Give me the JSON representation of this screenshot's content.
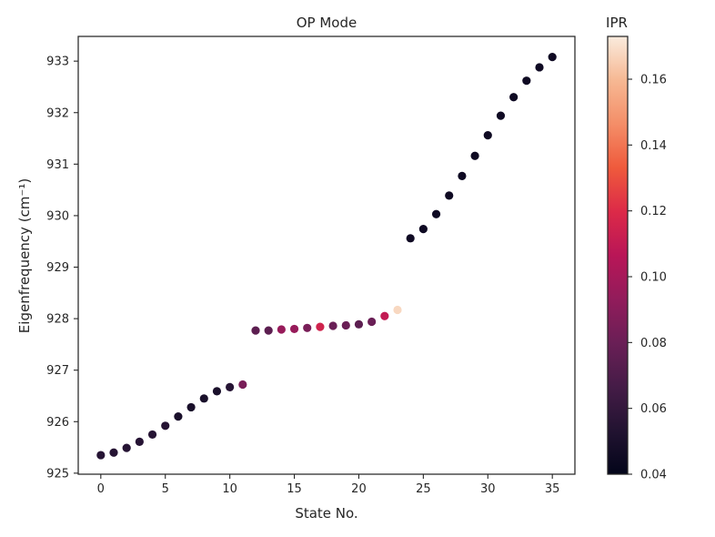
{
  "chart_data": {
    "type": "scatter",
    "title": "OP Mode",
    "xlabel": "State No.",
    "ylabel": "Eigenfrequency (cm⁻¹)",
    "xlim": [
      -1.75,
      36.75
    ],
    "ylim": [
      924.98,
      933.48
    ],
    "xticks": [
      0,
      5,
      10,
      15,
      20,
      25,
      30,
      35
    ],
    "yticks": [
      925,
      926,
      927,
      928,
      929,
      930,
      931,
      932,
      933
    ],
    "grid": false,
    "colorbar": {
      "label": "IPR",
      "range": [
        0.04,
        0.173
      ],
      "ticks": [
        0.04,
        0.06,
        0.08,
        0.1,
        0.12,
        0.14,
        0.16
      ],
      "tick_labels": [
        "0.04",
        "0.06",
        "0.08",
        "0.10",
        "0.12",
        "0.14",
        "0.16"
      ],
      "colormap": "rocket",
      "stops": [
        "#03051a",
        "#221331",
        "#451c47",
        "#6a1f56",
        "#921c5b",
        "#b91657",
        "#dc2a48",
        "#ef5a3c",
        "#f48e68",
        "#f6b893",
        "#faebdd"
      ]
    },
    "points": [
      {
        "x": 0,
        "y": 925.35,
        "ipr": 0.055
      },
      {
        "x": 1,
        "y": 925.4,
        "ipr": 0.055
      },
      {
        "x": 2,
        "y": 925.49,
        "ipr": 0.055
      },
      {
        "x": 3,
        "y": 925.61,
        "ipr": 0.055
      },
      {
        "x": 4,
        "y": 925.75,
        "ipr": 0.055
      },
      {
        "x": 5,
        "y": 925.92,
        "ipr": 0.055
      },
      {
        "x": 6,
        "y": 926.1,
        "ipr": 0.05
      },
      {
        "x": 7,
        "y": 926.28,
        "ipr": 0.05
      },
      {
        "x": 8,
        "y": 926.45,
        "ipr": 0.05
      },
      {
        "x": 9,
        "y": 926.59,
        "ipr": 0.05
      },
      {
        "x": 10,
        "y": 926.67,
        "ipr": 0.055
      },
      {
        "x": 11,
        "y": 926.72,
        "ipr": 0.085
      },
      {
        "x": 12,
        "y": 927.77,
        "ipr": 0.075
      },
      {
        "x": 13,
        "y": 927.77,
        "ipr": 0.075
      },
      {
        "x": 14,
        "y": 927.79,
        "ipr": 0.095
      },
      {
        "x": 15,
        "y": 927.8,
        "ipr": 0.095
      },
      {
        "x": 16,
        "y": 927.82,
        "ipr": 0.085
      },
      {
        "x": 17,
        "y": 927.84,
        "ipr": 0.115
      },
      {
        "x": 18,
        "y": 927.86,
        "ipr": 0.08
      },
      {
        "x": 19,
        "y": 927.87,
        "ipr": 0.08
      },
      {
        "x": 20,
        "y": 927.89,
        "ipr": 0.075
      },
      {
        "x": 21,
        "y": 927.94,
        "ipr": 0.08
      },
      {
        "x": 22,
        "y": 928.05,
        "ipr": 0.11
      },
      {
        "x": 23,
        "y": 928.17,
        "ipr": 0.168
      },
      {
        "x": 24,
        "y": 929.56,
        "ipr": 0.045
      },
      {
        "x": 25,
        "y": 929.74,
        "ipr": 0.045
      },
      {
        "x": 26,
        "y": 930.03,
        "ipr": 0.045
      },
      {
        "x": 27,
        "y": 930.39,
        "ipr": 0.045
      },
      {
        "x": 28,
        "y": 930.77,
        "ipr": 0.045
      },
      {
        "x": 29,
        "y": 931.16,
        "ipr": 0.045
      },
      {
        "x": 30,
        "y": 931.56,
        "ipr": 0.045
      },
      {
        "x": 31,
        "y": 931.94,
        "ipr": 0.045
      },
      {
        "x": 32,
        "y": 932.3,
        "ipr": 0.045
      },
      {
        "x": 33,
        "y": 932.62,
        "ipr": 0.045
      },
      {
        "x": 34,
        "y": 932.88,
        "ipr": 0.045
      },
      {
        "x": 35,
        "y": 933.08,
        "ipr": 0.045
      }
    ]
  }
}
